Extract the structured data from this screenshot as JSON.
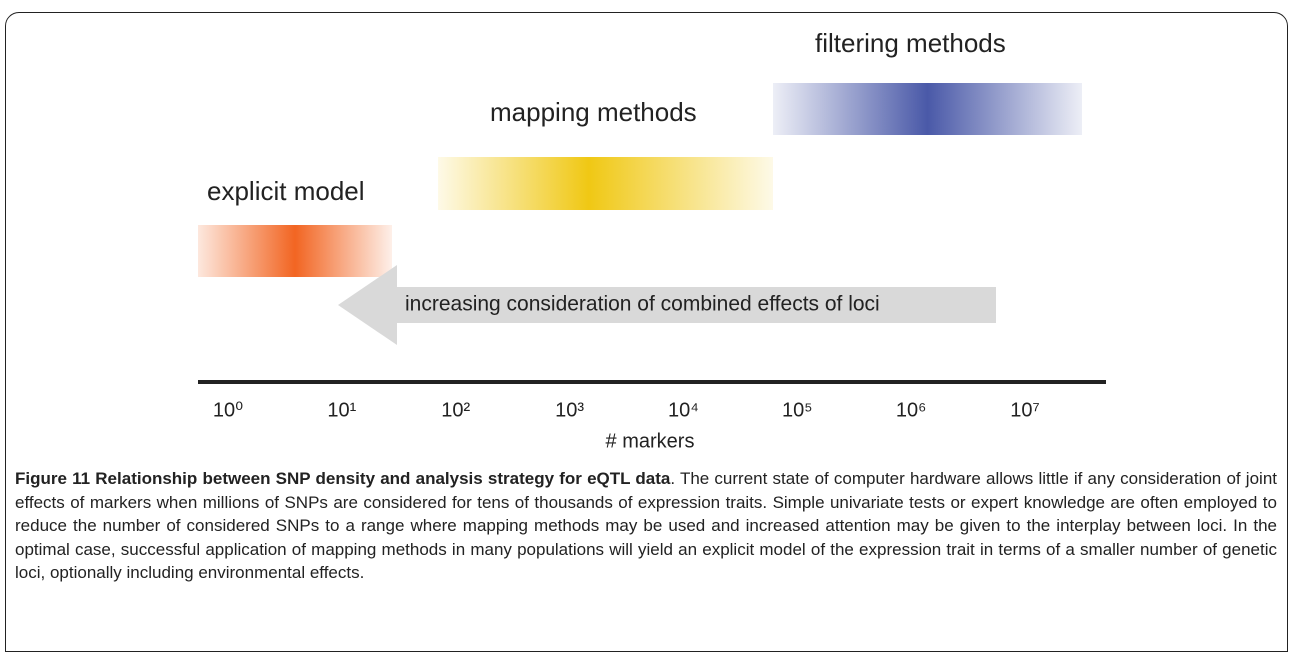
{
  "figure": {
    "bands": [
      {
        "label": "filtering methods"
      },
      {
        "label": "mapping methods"
      },
      {
        "label": "explicit model"
      }
    ],
    "arrow_label": "increasing consideration of combined effects of loci",
    "axis": {
      "ticks": [
        "10⁰",
        "10¹",
        "10²",
        "10³",
        "10⁴",
        "10⁵",
        "10⁶",
        "10⁷"
      ],
      "label": "# markers"
    },
    "caption": {
      "title": "Figure 11 Relationship between SNP density and analysis strategy for eQTL data",
      "text": ". The current state of computer hardware allows little if any consideration of joint effects of markers when millions of SNPs are considered for tens of thousands of expression traits. Simple univariate tests or expert knowledge are often employed to reduce the number of considered SNPs to a range where mapping methods may be used and increased attention may be given to the interplay between loci. In the optimal case, successful application of mapping methods in many populations will yield an explicit model of the expression trait in terms of a smaller number of genetic loci, optionally including environmental effects."
    }
  }
}
